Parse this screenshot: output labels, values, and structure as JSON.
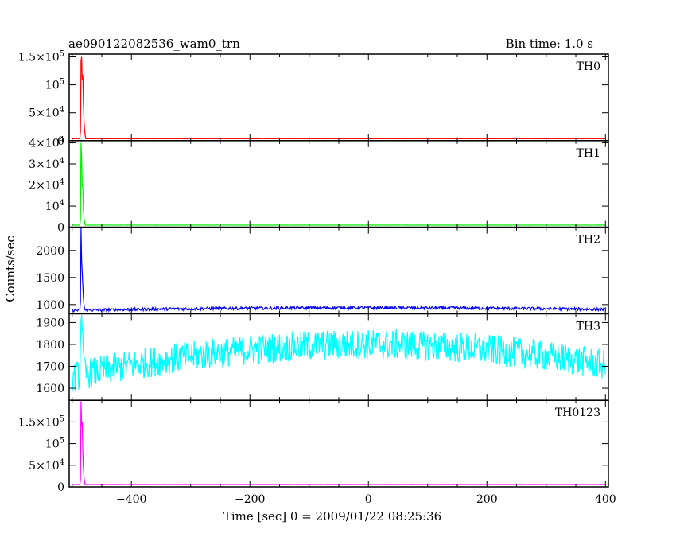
{
  "header": {
    "title": "ae090122082536_wam0_trn",
    "bin_time": "Bin time: 1.0 s"
  },
  "chart_data": {
    "type": "line",
    "title": "ae090122082536_wam0_trn",
    "xlabel": "Time [sec] 0 = 2009/01/22 08:25:36",
    "ylabel": "Counts/sec",
    "xlim": [
      -505,
      405
    ],
    "x_ticks": [
      -400,
      -200,
      0,
      200,
      400
    ],
    "x_tick_labels": [
      "−400",
      "−200",
      "0",
      "200",
      "400"
    ],
    "burst_time": -485,
    "data_start": -500,
    "data_end": 400,
    "panels": [
      {
        "name": "TH0",
        "color": "#ff0000",
        "ylim": [
          0,
          155000
        ],
        "y_ticks": [
          0,
          50000,
          100000,
          150000
        ],
        "y_tick_labels": [
          {
            "base": "0",
            "exp": ""
          },
          {
            "base": "5×10",
            "exp": "4"
          },
          {
            "base": "10",
            "exp": "5"
          },
          {
            "base": "1.5×10",
            "exp": "5"
          }
        ],
        "baseline": 3500,
        "noise": 150,
        "peak": 150000,
        "profile": [
          0.09,
          0.95,
          1.0,
          0.72,
          0.78,
          0.45,
          0.22,
          0.1,
          0.04
        ]
      },
      {
        "name": "TH1",
        "color": "#00ee00",
        "ylim": [
          0,
          41000
        ],
        "y_ticks": [
          0,
          10000,
          20000,
          30000,
          40000
        ],
        "y_tick_labels": [
          {
            "base": "0",
            "exp": ""
          },
          {
            "base": "10",
            "exp": "4"
          },
          {
            "base": "2×10",
            "exp": "4"
          },
          {
            "base": "3×10",
            "exp": "4"
          },
          {
            "base": "4×10",
            "exp": "4"
          }
        ],
        "baseline": 1000,
        "noise": 40,
        "peak": 40000,
        "profile": [
          0.07,
          1.0,
          0.82,
          0.48,
          0.45,
          0.2,
          0.08,
          0.04
        ]
      },
      {
        "name": "TH2",
        "color": "#0000ff",
        "ylim": [
          830,
          2430
        ],
        "y_ticks": [
          1000,
          1500,
          2000
        ],
        "y_tick_labels": [
          {
            "base": "1000",
            "exp": ""
          },
          {
            "base": "1500",
            "exp": ""
          },
          {
            "base": "2000",
            "exp": ""
          }
        ],
        "baseline": 900,
        "noise": 28,
        "peak": 2430,
        "profile": [
          0.1,
          1.0,
          0.6,
          0.45,
          0.3,
          0.15,
          0.06,
          0.02
        ]
      },
      {
        "name": "TH3",
        "color": "#00ffff",
        "ylim": [
          1545,
          1940
        ],
        "y_ticks": [
          1600,
          1700,
          1800,
          1900
        ],
        "y_tick_labels": [
          {
            "base": "1600",
            "exp": ""
          },
          {
            "base": "1700",
            "exp": ""
          },
          {
            "base": "1800",
            "exp": ""
          },
          {
            "base": "1900",
            "exp": ""
          }
        ],
        "baseline": 1700,
        "noise": 70,
        "peak": 1935,
        "profile": [
          0.6,
          0.9,
          1.0,
          0.75,
          0.6,
          0.3,
          0.2
        ]
      },
      {
        "name": "TH0123",
        "color": "#ff00ff",
        "ylim": [
          0,
          200000
        ],
        "y_ticks": [
          0,
          50000,
          100000,
          150000
        ],
        "y_tick_labels": [
          {
            "base": "0",
            "exp": ""
          },
          {
            "base": "5×10",
            "exp": "4"
          },
          {
            "base": "10",
            "exp": "5"
          },
          {
            "base": "1.5×10",
            "exp": "5"
          }
        ],
        "baseline": 5500,
        "noise": 200,
        "peak": 198000,
        "profile": [
          0.06,
          1.0,
          0.7,
          0.75,
          0.38,
          0.2,
          0.08,
          0.03
        ]
      }
    ]
  }
}
